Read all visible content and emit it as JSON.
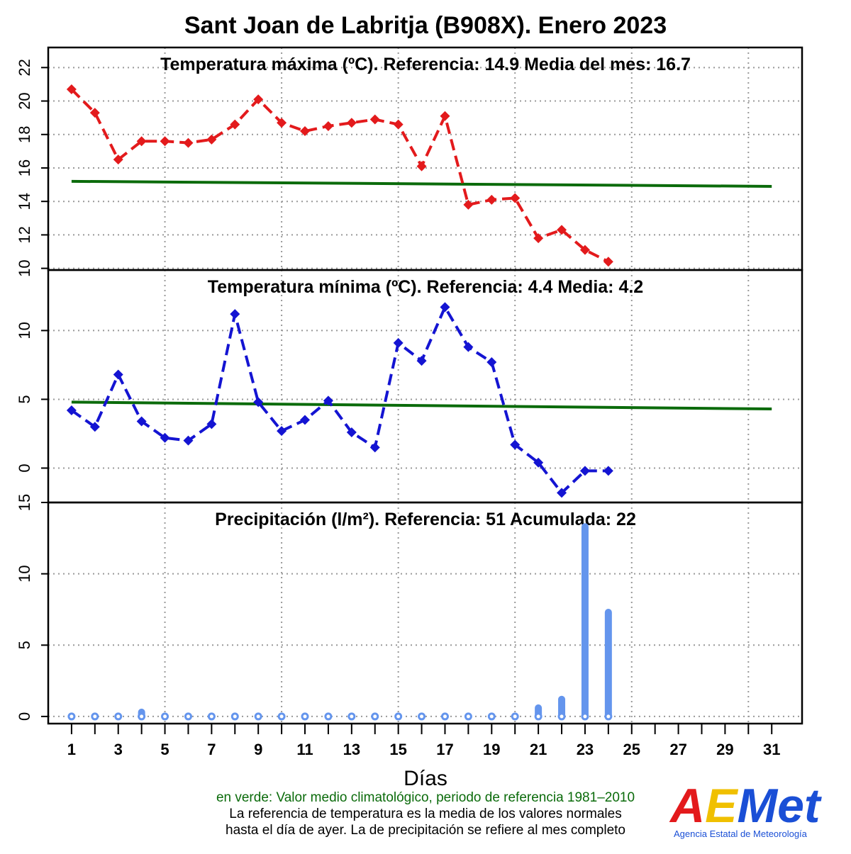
{
  "title": "Sant Joan de Labritja (B908X). Enero 2023",
  "colors": {
    "tmax": "#e31a1c",
    "tmin": "#1414d2",
    "reference": "#0b6b0b",
    "precip": "#6495ed",
    "grid": "#999999"
  },
  "chart_data": [
    {
      "type": "line",
      "title": "Temperatura máxima (ºC). Referencia:  14.9   Media del mes:  16.7",
      "ylim": [
        9.9,
        23.2
      ],
      "yticks": [
        10,
        12,
        14,
        16,
        18,
        20,
        22
      ],
      "grid": true,
      "x": [
        1,
        2,
        3,
        4,
        5,
        6,
        7,
        8,
        9,
        10,
        11,
        12,
        13,
        14,
        15,
        16,
        17,
        18,
        19,
        20,
        21,
        22,
        23,
        24
      ],
      "series": [
        {
          "values": [
            20.7,
            19.3,
            16.5,
            17.6,
            17.6,
            17.5,
            17.7,
            18.6,
            20.1,
            18.7,
            18.2,
            18.5,
            18.7,
            18.9,
            18.6,
            16.1,
            19.1,
            13.8,
            14.1,
            14.2,
            11.8,
            12.3,
            11.1,
            10.4
          ],
          "style": "dashed-diamond"
        }
      ],
      "reference": {
        "x": [
          1,
          31
        ],
        "values": [
          15.2,
          14.9
        ]
      }
    },
    {
      "type": "line",
      "title": "Temperatura mínima (ºC). Referencia:  4.4   Media:  4.2",
      "ylim": [
        -2.5,
        14.4
      ],
      "yticks": [
        0,
        5,
        10
      ],
      "grid": true,
      "x": [
        1,
        2,
        3,
        4,
        5,
        6,
        7,
        8,
        9,
        10,
        11,
        12,
        13,
        14,
        15,
        16,
        17,
        18,
        19,
        20,
        21,
        22,
        23,
        24
      ],
      "series": [
        {
          "values": [
            4.2,
            3.0,
            6.8,
            3.4,
            2.2,
            2.0,
            3.2,
            11.2,
            4.8,
            2.7,
            3.5,
            4.9,
            2.6,
            1.5,
            9.1,
            7.8,
            11.7,
            8.8,
            7.7,
            1.7,
            0.4,
            -1.8,
            -0.2,
            -0.2
          ],
          "style": "dashed-diamond"
        }
      ],
      "reference": {
        "x": [
          1,
          31
        ],
        "values": [
          4.8,
          4.3
        ]
      }
    },
    {
      "type": "bar",
      "title": "Precipitación (l/m²). Referencia:  51   Acumulada:  22",
      "ylim": [
        -0.5,
        15
      ],
      "yticks": [
        0,
        5,
        10,
        15
      ],
      "grid": true,
      "x": [
        1,
        2,
        3,
        4,
        5,
        6,
        7,
        8,
        9,
        10,
        11,
        12,
        13,
        14,
        15,
        16,
        17,
        18,
        19,
        20,
        21,
        22,
        23,
        24
      ],
      "values": [
        0,
        0,
        0,
        0.3,
        0,
        0,
        0,
        0,
        0,
        0,
        0,
        0,
        0,
        0,
        0,
        0,
        0,
        0,
        0,
        0,
        0.6,
        1.2,
        13.3,
        7.3
      ]
    }
  ],
  "xaxis": {
    "label": "Días",
    "ticks": [
      1,
      3,
      5,
      7,
      9,
      11,
      13,
      15,
      17,
      19,
      21,
      23,
      25,
      27,
      29,
      31
    ],
    "range": [
      0,
      32.3
    ]
  },
  "footer": {
    "green_note": "en verde: Valor medio climatológico, periodo de referencia 1981–2010",
    "line1": "La referencia de temperatura es la media de los valores normales",
    "line2": "hasta el día de ayer. La de precipitación se refiere al mes completo"
  },
  "logo": {
    "text": "AEMet",
    "subtitle": "Agencia Estatal de Meteorología"
  }
}
